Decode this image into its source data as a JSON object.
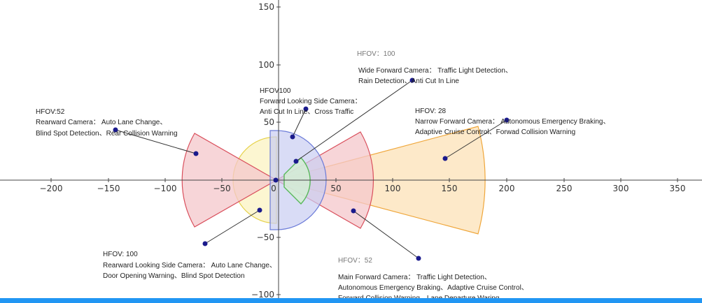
{
  "axes": {
    "x_ticks": [
      "−200",
      "−150",
      "−100",
      "−50",
      "0",
      "50",
      "100",
      "150",
      "200",
      "250",
      "300",
      "350"
    ],
    "y_ticks": [
      "150",
      "100",
      "50",
      "−50",
      "−100"
    ]
  },
  "sectors": [
    {
      "id": "wide-forward",
      "color": "#6b7bd8",
      "fill": "#c9cdf2"
    },
    {
      "id": "forward-side",
      "color": "#58b85a",
      "fill": "#d3efd3"
    },
    {
      "id": "main-forward",
      "color": "#d94f5c",
      "fill": "#f4c7cb"
    },
    {
      "id": "narrow-forward",
      "color": "#efa63a",
      "fill": "#fde3bc"
    },
    {
      "id": "rearward-side",
      "color": "#e6d24c",
      "fill": "#fbf5c9"
    },
    {
      "id": "rearward",
      "color": "#d94f5c",
      "fill": "#f4c7cb"
    }
  ],
  "annotations": {
    "wide": {
      "hfov": "HFOV：100",
      "line1": "Wide Forward Camera： Traffic Light Detection、",
      "line2": "Rain Detection、Anti Cut In Line"
    },
    "side_forward": {
      "hfov": "HFOV100",
      "line1": "Forward Looking Side Camera：",
      "line2": "Anti Cut In Line、Cross Traffic"
    },
    "rearward": {
      "hfov": "HFOV:52",
      "line1": "Rearward Camera： Auto Lane Change、",
      "line2": "Blind Spot Detection、Rear Collision Warning"
    },
    "narrow": {
      "hfov": "HFOV: 28",
      "line1": "Narrow Forward Camera： Autonomous Emergency Braking、",
      "line2": "Adaptive Cruise Control、Forwad Collision Warning"
    },
    "rear_side": {
      "hfov": "HFOV: 100",
      "line1": "Rearward Looking Side Camera： Auto Lane Change、",
      "line2": "Door Opening Warning、Blind Spot Detection"
    },
    "main": {
      "hfov": "HFOV：52",
      "line1": "Main Forward Camera： Traffic Light Detection、",
      "line2": "Autonomous Emergency Braking、Adaptive Cruise Control、",
      "line3": "Forward Collision Warning、Lane Departure Waring"
    }
  },
  "colors": {
    "axis": "#444444",
    "point": "#1a1a8c",
    "leader": "#333333",
    "bar": "#2196f3"
  }
}
